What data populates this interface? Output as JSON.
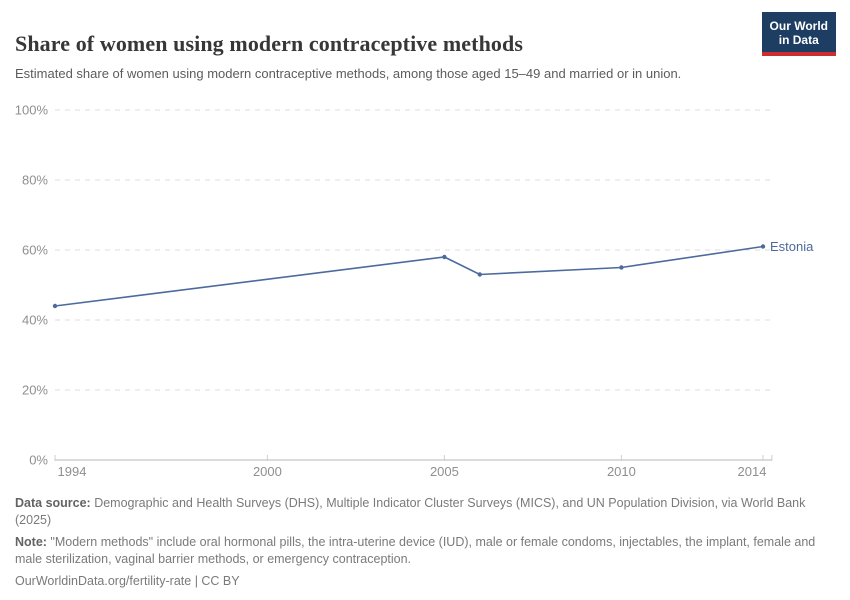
{
  "header": {
    "title": "Share of women using modern contraceptive methods",
    "subtitle": "Estimated share of women using modern contraceptive methods, among those aged 15–49 and married or in union.",
    "logo": {
      "line1": "Our World",
      "line2": "in Data"
    }
  },
  "chart_data": {
    "type": "line",
    "title": "Share of women using modern contraceptive methods",
    "xlabel": "",
    "ylabel": "",
    "xlim": [
      1994,
      2014.25
    ],
    "ylim": [
      0,
      100
    ],
    "x_ticks": [
      1994,
      2000,
      2005,
      2010,
      2014
    ],
    "y_ticks": [
      0,
      20,
      40,
      60,
      80,
      100
    ],
    "y_tick_suffix": "%",
    "grid": "horizontal-dashed",
    "legend_position": "end-of-line-label",
    "series": [
      {
        "name": "Estonia",
        "x": [
          1994,
          2005,
          2006,
          2010,
          2014
        ],
        "values": [
          44,
          58,
          53,
          55,
          61
        ],
        "color": "#4c6a9c"
      }
    ]
  },
  "colors": {
    "grid": "#dedede",
    "axis": "#cfcfcf",
    "tick_label": "#8f8f8f",
    "series_blue": "#4c6a9c"
  },
  "footer": {
    "source_label": "Data source:",
    "source_text": " Demographic and Health Surveys (DHS), Multiple Indicator Cluster Surveys (MICS), and UN Population Division, via World Bank (2025)",
    "note_label": "Note:",
    "note_text": " \"Modern methods\" include oral hormonal pills, the intra-uterine device (IUD), male or female condoms, injectables, the implant, female and male sterilization, vaginal barrier methods, or emergency contraception.",
    "cc_line": "OurWorldinData.org/fertility-rate | CC BY"
  }
}
